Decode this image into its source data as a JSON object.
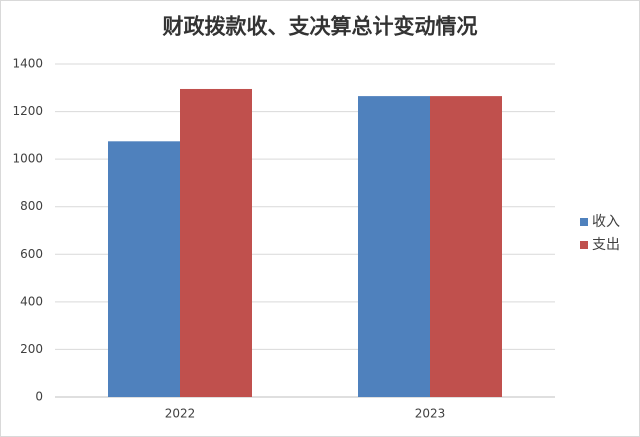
{
  "chart_data": {
    "type": "bar",
    "title": "财政拨款收、支决算总计变动情况",
    "categories": [
      "2022",
      "2023"
    ],
    "series": [
      {
        "name": "收入",
        "color": "#4f81bd",
        "values": [
          1075,
          1265
        ]
      },
      {
        "name": "支出",
        "color": "#c0504d",
        "values": [
          1295,
          1265
        ]
      }
    ],
    "ylim": [
      0,
      1400
    ],
    "yticks": [
      0,
      200,
      400,
      600,
      800,
      1000,
      1200,
      1400
    ],
    "grid": true,
    "legend": "right"
  }
}
